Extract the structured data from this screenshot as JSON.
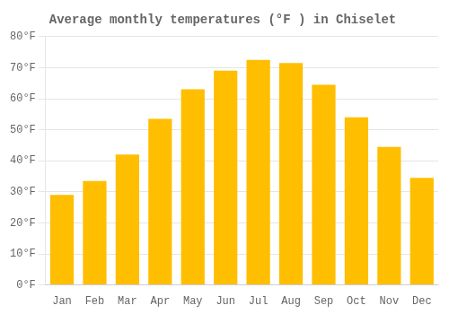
{
  "chart_data": {
    "type": "bar",
    "title": "Average monthly temperatures (°F ) in Chiselet",
    "categories": [
      "Jan",
      "Feb",
      "Mar",
      "Apr",
      "May",
      "Jun",
      "Jul",
      "Aug",
      "Sep",
      "Oct",
      "Nov",
      "Dec"
    ],
    "values": [
      29,
      33.5,
      42,
      53.5,
      63,
      69,
      72.5,
      71.5,
      64.5,
      54,
      44.5,
      34.5
    ],
    "color": "#FFBE00",
    "ylim": [
      0,
      80
    ],
    "yticks": [
      {
        "value": 0,
        "label": "0°F"
      },
      {
        "value": 10,
        "label": "10°F"
      },
      {
        "value": 20,
        "label": "20°F"
      },
      {
        "value": 30,
        "label": "30°F"
      },
      {
        "value": 40,
        "label": "40°F"
      },
      {
        "value": 50,
        "label": "50°F"
      },
      {
        "value": 60,
        "label": "60°F"
      },
      {
        "value": 70,
        "label": "70°F"
      },
      {
        "value": 80,
        "label": "80°F"
      }
    ],
    "grid": true
  }
}
